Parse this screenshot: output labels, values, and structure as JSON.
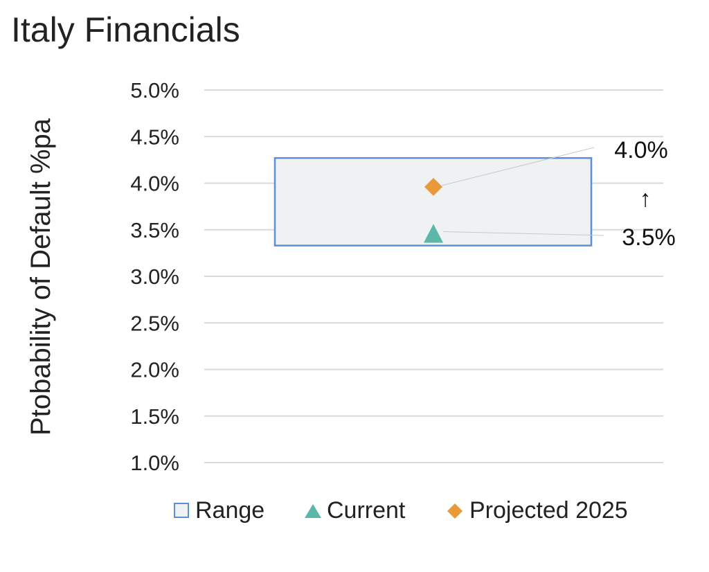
{
  "chart_data": {
    "type": "range-dot",
    "title": "Italy Financials",
    "ylabel": "Ptobability of Default %pa",
    "ylim": [
      0.01,
      0.05
    ],
    "yticks": [
      0.05,
      0.045,
      0.04,
      0.035,
      0.03,
      0.025,
      0.02,
      0.015,
      0.01
    ],
    "ytick_labels": [
      "5.0%",
      "4.5%",
      "4.0%",
      "3.5%",
      "3.0%",
      "2.5%",
      "2.0%",
      "1.5%",
      "1.0%"
    ],
    "grid": true,
    "range": {
      "name": "Range",
      "low": 0.0333,
      "high": 0.0427,
      "color": "#5b8fd6",
      "fill": "#eff1f3"
    },
    "series": [
      {
        "name": "Current",
        "value": 0.0345,
        "label": "3.5%",
        "marker": "triangle",
        "color": "#5bb8a9"
      },
      {
        "name": "Projected 2025",
        "value": 0.0396,
        "label": "4.0%",
        "marker": "diamond",
        "color": "#e89a3a"
      }
    ],
    "arrow": "↑",
    "legend": [
      "Range",
      "Current",
      "Projected 2025"
    ],
    "legend_position": "bottom"
  }
}
